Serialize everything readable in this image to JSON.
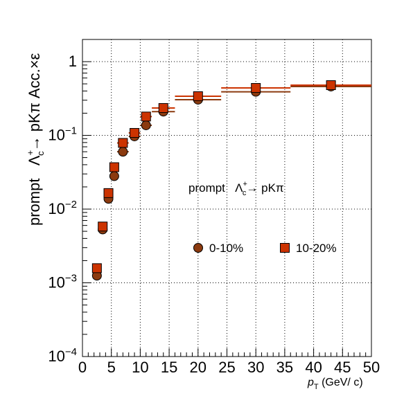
{
  "chart_data": {
    "type": "scatter",
    "xlabel": {
      "main": "p",
      "sub": "T",
      "unit": " (GeV/ c)"
    },
    "ylabel": {
      "prefix": "prompt   ",
      "particle": "Λ",
      "sup": "+",
      "sub": "c",
      "suffix": "→ pKπ Acc.×ε"
    },
    "annotation": {
      "prefix": "prompt   ",
      "particle": "Λ",
      "sup": "+",
      "sub": "c",
      "suffix": "→ pKπ"
    },
    "xlim": [
      0,
      50
    ],
    "ylim": [
      0.0001,
      2
    ],
    "yscale": "log",
    "grid": true,
    "legend_position": "center-right",
    "x_ticks": [
      "0",
      "5",
      "10",
      "15",
      "20",
      "25",
      "30",
      "35",
      "40",
      "45",
      "50"
    ],
    "y_ticks": [
      {
        "base": "10",
        "exp": "−4",
        "value": 0.0001
      },
      {
        "base": "10",
        "exp": "−3",
        "value": 0.001
      },
      {
        "base": "10",
        "exp": "−2",
        "value": 0.01
      },
      {
        "base": "10",
        "exp": "−1",
        "value": 0.1
      },
      {
        "base": "1",
        "exp": "",
        "value": 1
      }
    ],
    "series": [
      {
        "name": "0-10%",
        "marker": "circle",
        "color": "#8b3a0f",
        "points": [
          {
            "x": 2.5,
            "y": 0.00125,
            "xmin": 2,
            "xmax": 3
          },
          {
            "x": 3.5,
            "y": 0.0053,
            "xmin": 3,
            "xmax": 4
          },
          {
            "x": 4.5,
            "y": 0.0138,
            "xmin": 4,
            "xmax": 5
          },
          {
            "x": 5.5,
            "y": 0.028,
            "xmin": 5,
            "xmax": 6
          },
          {
            "x": 7,
            "y": 0.06,
            "xmin": 6,
            "xmax": 8
          },
          {
            "x": 9,
            "y": 0.097,
            "xmin": 8,
            "xmax": 10
          },
          {
            "x": 11,
            "y": 0.137,
            "xmin": 10,
            "xmax": 12
          },
          {
            "x": 14,
            "y": 0.21,
            "xmin": 12,
            "xmax": 16
          },
          {
            "x": 20,
            "y": 0.305,
            "xmin": 16,
            "xmax": 24
          },
          {
            "x": 30,
            "y": 0.39,
            "xmin": 24,
            "xmax": 36
          },
          {
            "x": 43,
            "y": 0.46,
            "xmin": 36,
            "xmax": 50
          }
        ]
      },
      {
        "name": "10-20%",
        "marker": "square",
        "color": "#cc3300",
        "points": [
          {
            "x": 2.5,
            "y": 0.00158,
            "xmin": 2,
            "xmax": 3
          },
          {
            "x": 3.5,
            "y": 0.0058,
            "xmin": 3,
            "xmax": 4
          },
          {
            "x": 4.5,
            "y": 0.0165,
            "xmin": 4,
            "xmax": 5
          },
          {
            "x": 5.5,
            "y": 0.037,
            "xmin": 5,
            "xmax": 6
          },
          {
            "x": 7,
            "y": 0.079,
            "xmin": 6,
            "xmax": 8
          },
          {
            "x": 9,
            "y": 0.108,
            "xmin": 8,
            "xmax": 10
          },
          {
            "x": 11,
            "y": 0.18,
            "xmin": 10,
            "xmax": 12
          },
          {
            "x": 14,
            "y": 0.235,
            "xmin": 12,
            "xmax": 16
          },
          {
            "x": 20,
            "y": 0.34,
            "xmin": 16,
            "xmax": 24
          },
          {
            "x": 30,
            "y": 0.44,
            "xmin": 24,
            "xmax": 36
          },
          {
            "x": 43,
            "y": 0.48,
            "xmin": 36,
            "xmax": 50
          }
        ]
      }
    ]
  }
}
